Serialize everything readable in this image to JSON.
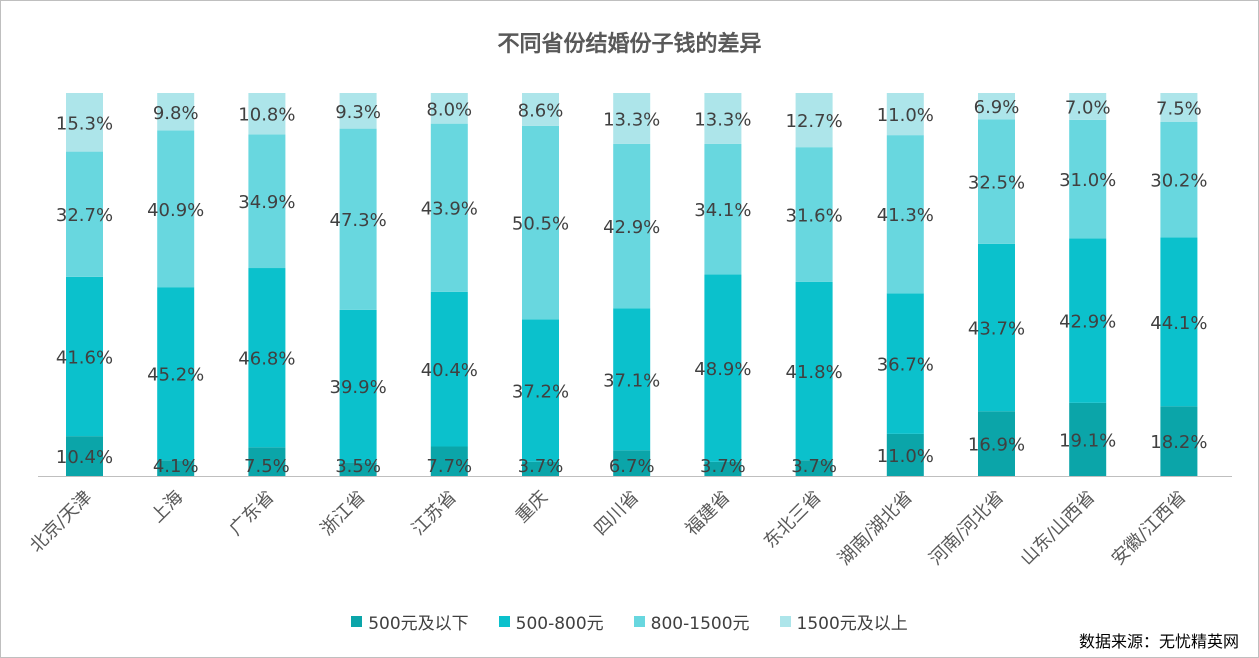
{
  "chart_data": {
    "type": "bar",
    "stacked": true,
    "percent": true,
    "title": "不同省份结婚份子钱的差异",
    "categories": [
      "北京/天津",
      "上海",
      "广东省",
      "浙江省",
      "江苏省",
      "重庆",
      "四川省",
      "福建省",
      "东北三省",
      "湖南/湖北省",
      "河南/河北省",
      "山东/山西省",
      "安徽/江西省"
    ],
    "series": [
      {
        "name": "500元及以下",
        "color": "#0ba5a9",
        "values": [
          10.4,
          4.1,
          7.5,
          3.5,
          7.7,
          3.7,
          6.7,
          3.7,
          3.7,
          11.0,
          16.9,
          19.1,
          18.2
        ]
      },
      {
        "name": "500-800元",
        "color": "#0bc1cc",
        "values": [
          41.6,
          45.2,
          46.8,
          39.9,
          40.4,
          37.2,
          37.1,
          48.9,
          41.8,
          36.7,
          43.7,
          42.9,
          44.1
        ]
      },
      {
        "name": "800-1500元",
        "color": "#68d7df",
        "values": [
          32.7,
          40.9,
          34.9,
          47.3,
          43.9,
          50.5,
          42.9,
          34.1,
          31.6,
          41.3,
          32.5,
          31.0,
          30.2
        ]
      },
      {
        "name": "1500元及以上",
        "color": "#ade5ea",
        "values": [
          15.3,
          9.8,
          10.8,
          9.3,
          8.0,
          8.6,
          13.3,
          13.3,
          12.7,
          11.0,
          6.9,
          7.0,
          7.5
        ]
      }
    ],
    "value_format": "percent_1dp",
    "ylim": [
      0,
      100
    ],
    "grid": false,
    "legend_position": "bottom"
  },
  "source": "数据来源：无忧精英网"
}
